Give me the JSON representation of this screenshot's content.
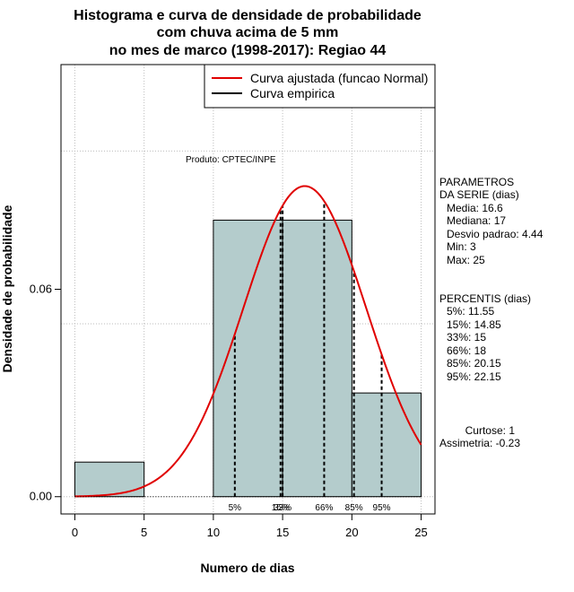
{
  "chart_data": {
    "type": "bar",
    "title_lines": [
      "Histograma e curva de densidade de probabilidade",
      "com chuva acima de 5 mm",
      "no mes de marco (1998-2017): Regiao 44"
    ],
    "xlabel": "Numero de dias",
    "ylabel": "Densidade de probabilidade",
    "xlim": [
      -1,
      26
    ],
    "ylim": [
      -0.005,
      0.125
    ],
    "x_ticks": [
      0,
      5,
      10,
      15,
      20,
      25
    ],
    "y_ticks": [
      0.0,
      0.06
    ],
    "y_tick_labels": [
      "0.00",
      "0.06"
    ],
    "grid_x": [
      0,
      5,
      10,
      15,
      20,
      25
    ],
    "grid_y": [
      0.0,
      0.05,
      0.1
    ],
    "histogram": {
      "bins": [
        [
          0,
          5
        ],
        [
          5,
          10
        ],
        [
          10,
          15
        ],
        [
          15,
          20
        ],
        [
          20,
          25
        ]
      ],
      "values": [
        0.01,
        0.0,
        0.08,
        0.08,
        0.03
      ],
      "fill": "#b4cccc"
    },
    "normal_curve": {
      "name": "Curva ajustada (funcao Normal)",
      "mean": 16.6,
      "sd": 4.44,
      "color": "#e00000"
    },
    "legend": [
      {
        "label": "Curva ajustada (funcao Normal)",
        "color": "#e00000"
      },
      {
        "label": "Curva empirica",
        "color": "#000000"
      }
    ],
    "percentile_lines": [
      {
        "label": "5%",
        "x": 11.55
      },
      {
        "label": "15%",
        "x": 14.85
      },
      {
        "label": "33%",
        "x": 15
      },
      {
        "label": "66%",
        "x": 18
      },
      {
        "label": "85%",
        "x": 20.15
      },
      {
        "label": "95%",
        "x": 22.15
      }
    ],
    "product_note": "Produto: CPTEC/INPE",
    "parameters": {
      "heading": [
        "PARAMETROS",
        "DA SERIE (dias)"
      ],
      "items": [
        "Media: 16.6",
        "Mediana: 17",
        "Desvio padrao: 4.44",
        "Min: 3",
        "Max: 25"
      ]
    },
    "percentis": {
      "heading": "PERCENTIS (dias)",
      "items": [
        "5%: 11.55",
        "15%: 14.85",
        "33%: 15",
        "66%: 18",
        "85%: 20.15",
        "95%: 22.15"
      ]
    },
    "shape": {
      "curtose": "Curtose: 1",
      "assimetria": "Assimetria: -0.23"
    }
  }
}
